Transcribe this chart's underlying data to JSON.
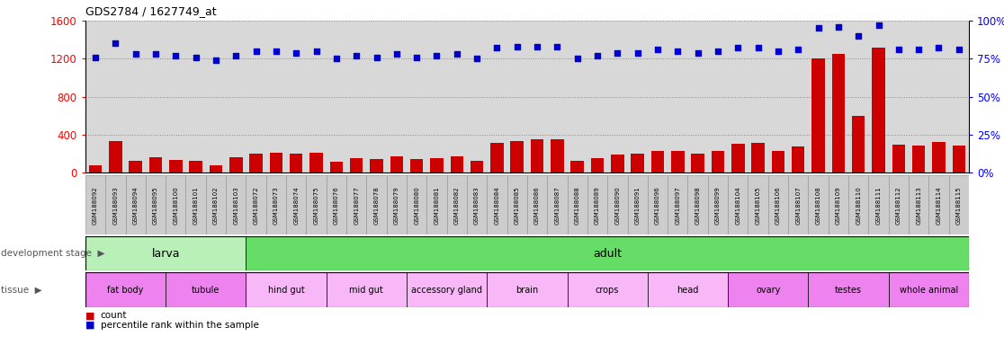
{
  "title": "GDS2784 / 1627749_at",
  "samples": [
    "GSM188092",
    "GSM188093",
    "GSM188094",
    "GSM188095",
    "GSM188100",
    "GSM188101",
    "GSM188102",
    "GSM188103",
    "GSM188072",
    "GSM188073",
    "GSM188074",
    "GSM188075",
    "GSM188076",
    "GSM188077",
    "GSM188078",
    "GSM188079",
    "GSM188080",
    "GSM188081",
    "GSM188082",
    "GSM188083",
    "GSM188084",
    "GSM188085",
    "GSM188086",
    "GSM188087",
    "GSM188088",
    "GSM188089",
    "GSM188090",
    "GSM188091",
    "GSM188096",
    "GSM188097",
    "GSM188098",
    "GSM188099",
    "GSM188104",
    "GSM188105",
    "GSM188106",
    "GSM188107",
    "GSM188108",
    "GSM188109",
    "GSM188110",
    "GSM188111",
    "GSM188112",
    "GSM188113",
    "GSM188114",
    "GSM188115"
  ],
  "counts": [
    80,
    330,
    120,
    160,
    130,
    120,
    80,
    160,
    200,
    210,
    200,
    210,
    110,
    150,
    140,
    170,
    140,
    150,
    170,
    120,
    310,
    330,
    350,
    350,
    120,
    150,
    190,
    200,
    230,
    230,
    200,
    230,
    300,
    310,
    230,
    270,
    1200,
    1250,
    600,
    1320,
    290,
    280,
    320,
    280
  ],
  "percentiles": [
    76,
    85,
    78,
    78,
    77,
    76,
    74,
    77,
    80,
    80,
    79,
    80,
    75,
    77,
    76,
    78,
    76,
    77,
    78,
    75,
    82,
    83,
    83,
    83,
    75,
    77,
    79,
    79,
    81,
    80,
    79,
    80,
    82,
    82,
    80,
    81,
    95,
    96,
    90,
    97,
    81,
    81,
    82,
    81
  ],
  "ylim_left": [
    0,
    1600
  ],
  "ylim_right": [
    0,
    100
  ],
  "yticks_left": [
    0,
    400,
    800,
    1200,
    1600
  ],
  "yticks_right": [
    0,
    25,
    50,
    75,
    100
  ],
  "bar_color": "#cc0000",
  "dot_color": "#0000cc",
  "development_stages": [
    {
      "label": "larva",
      "start": 0,
      "end": 8,
      "color": "#b8f0b8"
    },
    {
      "label": "adult",
      "start": 8,
      "end": 44,
      "color": "#66dd66"
    }
  ],
  "tissues": [
    {
      "label": "fat body",
      "start": 0,
      "end": 4,
      "color": "#ee82ee"
    },
    {
      "label": "tubule",
      "start": 4,
      "end": 8,
      "color": "#ee82ee"
    },
    {
      "label": "hind gut",
      "start": 8,
      "end": 12,
      "color": "#f8b8f8"
    },
    {
      "label": "mid gut",
      "start": 12,
      "end": 16,
      "color": "#f8b8f8"
    },
    {
      "label": "accessory gland",
      "start": 16,
      "end": 20,
      "color": "#f8b8f8"
    },
    {
      "label": "brain",
      "start": 20,
      "end": 24,
      "color": "#f8b8f8"
    },
    {
      "label": "crops",
      "start": 24,
      "end": 28,
      "color": "#f8b8f8"
    },
    {
      "label": "head",
      "start": 28,
      "end": 32,
      "color": "#f8b8f8"
    },
    {
      "label": "ovary",
      "start": 32,
      "end": 36,
      "color": "#ee82ee"
    },
    {
      "label": "testes",
      "start": 36,
      "end": 40,
      "color": "#ee82ee"
    },
    {
      "label": "whole animal",
      "start": 40,
      "end": 44,
      "color": "#ee82ee"
    }
  ],
  "left_label_dev": "development stage",
  "left_label_tissue": "tissue",
  "legend_count": "count",
  "legend_pct": "percentile rank within the sample",
  "plot_bg_color": "#d8d8d8",
  "xticklabel_bg": "#cccccc"
}
